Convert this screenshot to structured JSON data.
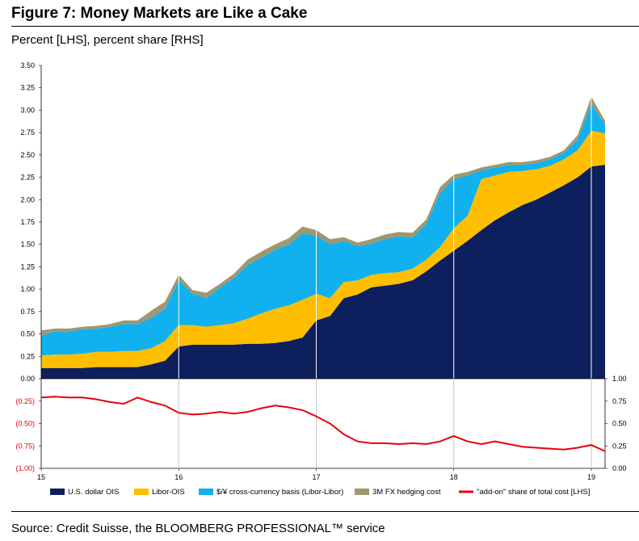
{
  "header": {
    "title": "Figure 7: Money Markets are Like a Cake",
    "subtitle": "Percent [LHS], percent share [RHS]"
  },
  "footer": {
    "source": "Source: Credit Suisse, the BLOOMBERG PROFESSIONAL™ service"
  },
  "colors": {
    "ois": "#0d1f5c",
    "libor_ois": "#ffbe00",
    "basis": "#10b1ee",
    "hedging": "#9f9770",
    "addon": "#e8000b"
  },
  "chart_data": [
    {
      "type": "area",
      "title": "Figure 7: Money Markets are Like a Cake",
      "ylabel": "Percent [LHS]",
      "ylim": [
        0,
        3.5
      ],
      "yticks": [
        "0.00",
        "0.25",
        "0.50",
        "0.75",
        "1.00",
        "1.25",
        "1.50",
        "1.75",
        "2.00",
        "2.25",
        "2.50",
        "2.75",
        "3.00",
        "3.25",
        "3.50"
      ],
      "x": [
        15.0,
        15.1,
        15.2,
        15.3,
        15.4,
        15.5,
        15.6,
        15.7,
        15.8,
        15.9,
        16.0,
        16.1,
        16.2,
        16.3,
        16.4,
        16.5,
        16.6,
        16.7,
        16.8,
        16.9,
        17.0,
        17.1,
        17.2,
        17.3,
        17.4,
        17.5,
        17.6,
        17.7,
        17.8,
        17.9,
        18.0,
        18.1,
        18.2,
        18.3,
        18.4,
        18.5,
        18.6,
        18.7,
        18.8,
        18.9,
        19.0,
        19.1
      ],
      "series": [
        {
          "name": "U.S. dollar OIS",
          "values": [
            0.12,
            0.12,
            0.12,
            0.12,
            0.13,
            0.13,
            0.13,
            0.13,
            0.16,
            0.2,
            0.36,
            0.38,
            0.38,
            0.38,
            0.38,
            0.39,
            0.39,
            0.4,
            0.42,
            0.46,
            0.65,
            0.7,
            0.9,
            0.94,
            1.02,
            1.04,
            1.06,
            1.1,
            1.2,
            1.32,
            1.43,
            1.54,
            1.66,
            1.77,
            1.86,
            1.94,
            2.0,
            2.08,
            2.16,
            2.25,
            2.37,
            2.39
          ]
        },
        {
          "name": "Libor-OIS",
          "values": [
            0.14,
            0.15,
            0.15,
            0.16,
            0.17,
            0.17,
            0.18,
            0.18,
            0.18,
            0.22,
            0.24,
            0.22,
            0.2,
            0.22,
            0.24,
            0.28,
            0.34,
            0.38,
            0.4,
            0.42,
            0.3,
            0.2,
            0.18,
            0.16,
            0.14,
            0.14,
            0.13,
            0.13,
            0.13,
            0.15,
            0.25,
            0.28,
            0.57,
            0.5,
            0.45,
            0.38,
            0.34,
            0.3,
            0.29,
            0.3,
            0.4,
            0.35
          ]
        },
        {
          "name": "$/¥ cross-currency basis (Libor-Libor)",
          "values": [
            0.22,
            0.26,
            0.26,
            0.27,
            0.26,
            0.28,
            0.3,
            0.3,
            0.34,
            0.36,
            0.5,
            0.35,
            0.32,
            0.42,
            0.5,
            0.6,
            0.62,
            0.66,
            0.68,
            0.74,
            0.65,
            0.6,
            0.46,
            0.38,
            0.35,
            0.38,
            0.4,
            0.35,
            0.4,
            0.6,
            0.55,
            0.45,
            0.1,
            0.09,
            0.08,
            0.07,
            0.07,
            0.07,
            0.07,
            0.12,
            0.3,
            0.1
          ]
        },
        {
          "name": "3M FX hedging cost",
          "values": [
            0.06,
            0.03,
            0.03,
            0.03,
            0.03,
            0.03,
            0.04,
            0.04,
            0.08,
            0.08,
            0.06,
            0.04,
            0.06,
            0.04,
            0.05,
            0.06,
            0.07,
            0.06,
            0.07,
            0.08,
            0.06,
            0.06,
            0.04,
            0.04,
            0.05,
            0.05,
            0.05,
            0.05,
            0.05,
            0.07,
            0.05,
            0.04,
            0.03,
            0.03,
            0.03,
            0.03,
            0.03,
            0.03,
            0.03,
            0.05,
            0.08,
            0.04
          ]
        }
      ]
    },
    {
      "type": "line",
      "ylabel": "Percent share [RHS]",
      "ylim": [
        0,
        1
      ],
      "yticks_left": [
        "(1.00)",
        "(0.75)",
        "(0.50)",
        "(0.25)"
      ],
      "yticks_right": [
        "0.00",
        "0.25",
        "0.50",
        "0.75",
        "1.00"
      ],
      "xticks": [
        "15",
        "16",
        "17",
        "18",
        "19"
      ],
      "x": [
        15.0,
        15.1,
        15.2,
        15.3,
        15.4,
        15.5,
        15.6,
        15.7,
        15.8,
        15.9,
        16.0,
        16.1,
        16.2,
        16.3,
        16.4,
        16.5,
        16.6,
        16.7,
        16.8,
        16.9,
        17.0,
        17.1,
        17.2,
        17.3,
        17.4,
        17.5,
        17.6,
        17.7,
        17.8,
        17.9,
        18.0,
        18.1,
        18.2,
        18.3,
        18.4,
        18.5,
        18.6,
        18.7,
        18.8,
        18.9,
        19.0,
        19.1
      ],
      "series": [
        {
          "name": "\"add-on\" share of total cost [LHS]",
          "values": [
            0.79,
            0.8,
            0.79,
            0.79,
            0.77,
            0.74,
            0.72,
            0.79,
            0.74,
            0.7,
            0.62,
            0.6,
            0.61,
            0.63,
            0.61,
            0.63,
            0.67,
            0.7,
            0.68,
            0.65,
            0.58,
            0.5,
            0.38,
            0.3,
            0.28,
            0.28,
            0.27,
            0.28,
            0.27,
            0.3,
            0.36,
            0.3,
            0.27,
            0.3,
            0.27,
            0.24,
            0.23,
            0.22,
            0.21,
            0.23,
            0.26,
            0.19
          ]
        }
      ]
    }
  ],
  "legend": {
    "items": [
      {
        "label": "U.S. dollar OIS"
      },
      {
        "label": "Libor-OIS"
      },
      {
        "label": "$/¥ cross-currency basis (Libor-Libor)"
      },
      {
        "label": "3M FX hedging cost"
      },
      {
        "label": "\"add-on\" share of total cost [LHS]"
      }
    ]
  }
}
